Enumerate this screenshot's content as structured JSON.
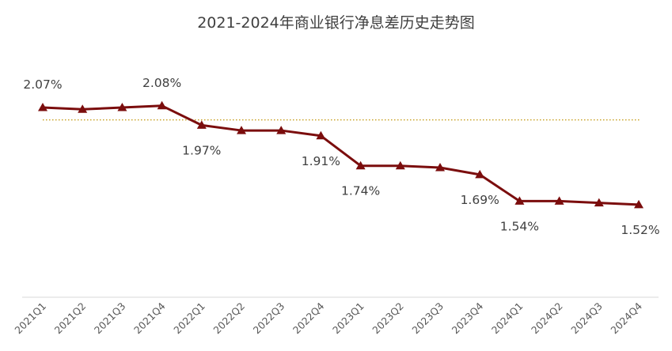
{
  "chart_data": {
    "type": "line",
    "title": "2021-2024年商业银行净息差历史走势图",
    "xlabel": "",
    "ylabel": "",
    "categories": [
      "2021Q1",
      "2021Q2",
      "2021Q3",
      "2021Q4",
      "2022Q1",
      "2022Q2",
      "2022Q3",
      "2022Q4",
      "2023Q1",
      "2023Q2",
      "2023Q3",
      "2023Q4",
      "2024Q1",
      "2024Q2",
      "2024Q3",
      "2024Q4"
    ],
    "series": [
      {
        "values": [
          2.07,
          2.06,
          2.07,
          2.08,
          1.97,
          1.94,
          1.94,
          1.91,
          1.74,
          1.74,
          1.73,
          1.69,
          1.54,
          1.54,
          1.53,
          1.52
        ],
        "color": "#7b0d0d",
        "marker": "triangle"
      }
    ],
    "data_labels": [
      {
        "index": 0,
        "text": "2.07%",
        "position": "above"
      },
      {
        "index": 3,
        "text": "2.08%",
        "position": "above"
      },
      {
        "index": 4,
        "text": "1.97%",
        "position": "below"
      },
      {
        "index": 7,
        "text": "1.91%",
        "position": "below"
      },
      {
        "index": 8,
        "text": "1.74%",
        "position": "below"
      },
      {
        "index": 11,
        "text": "1.69%",
        "position": "below"
      },
      {
        "index": 12,
        "text": "1.54%",
        "position": "below"
      },
      {
        "index": 15,
        "text": "1.52%",
        "position": "below"
      }
    ],
    "reference_line": {
      "value": 2.0,
      "style": "dotted",
      "color": "#c9a227"
    },
    "ylim": [
      1.0,
      2.5
    ],
    "grid": false,
    "legend": "none"
  }
}
